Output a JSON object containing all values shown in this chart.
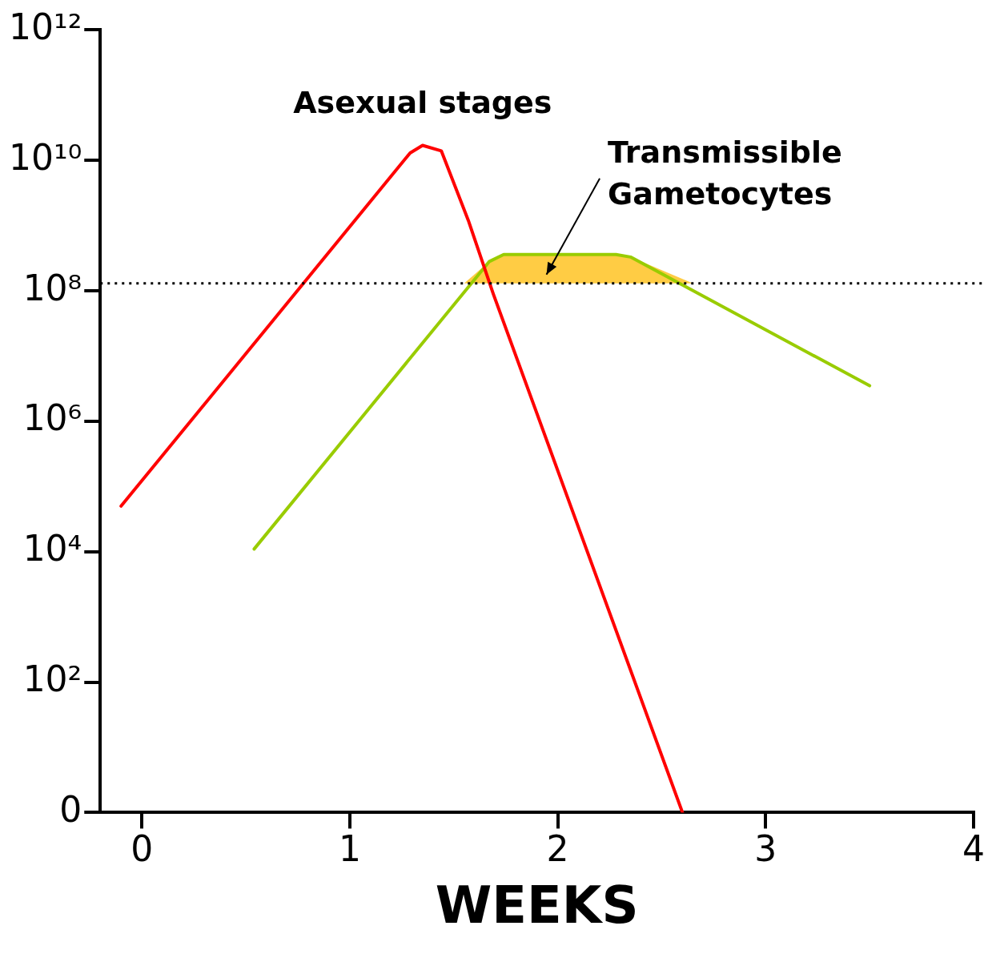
{
  "chart_data": {
    "type": "line",
    "xlabel": "WEEKS",
    "xlim": [
      -0.2,
      4
    ],
    "xticks": [
      0,
      1,
      2,
      3,
      4
    ],
    "ylim": [
      0,
      1000000000000
    ],
    "yticks": [
      0,
      {
        "value": 100,
        "label": "10²"
      },
      {
        "value": 10000,
        "label": "10⁴"
      },
      {
        "value": 1000000,
        "label": "10⁶"
      },
      {
        "value": 100000000,
        "label": "10⁸"
      },
      {
        "value": 10000000000,
        "label": "10¹⁰"
      },
      {
        "value": 1000000000000,
        "label": "10¹²"
      }
    ],
    "log": "y",
    "grid": false,
    "legend": false,
    "marker": "none",
    "series": [
      {
        "name": "Asexual stages",
        "color": "#ff0000",
        "x": [
          -0.1,
          1.29,
          1.35,
          1.44,
          1.57,
          1.69,
          2.6
        ],
        "values": [
          50000,
          13000000000,
          17000000000,
          14000000000,
          1200000000,
          90000000,
          1
        ]
      },
      {
        "color": "#99cc00",
        "x": [
          0.54,
          1.67,
          1.74,
          2.28,
          2.35,
          3.5
        ],
        "values": [
          11000,
          280000000,
          360000000,
          360000000,
          330000000,
          3500000
        ]
      },
      {
        "name": "Transmissible Gametocytes",
        "type": "area",
        "color": "#ffcc44",
        "x": [
          1.55,
          1.67,
          1.74,
          2.28,
          2.35,
          2.65
        ],
        "values": [
          130000000,
          280000000,
          360000000,
          360000000,
          330000000,
          130000000
        ]
      }
    ],
    "ref_lines": [
      {
        "axis": "y",
        "value": 130000000,
        "color": "#000000",
        "line_style": "dotted"
      }
    ]
  }
}
